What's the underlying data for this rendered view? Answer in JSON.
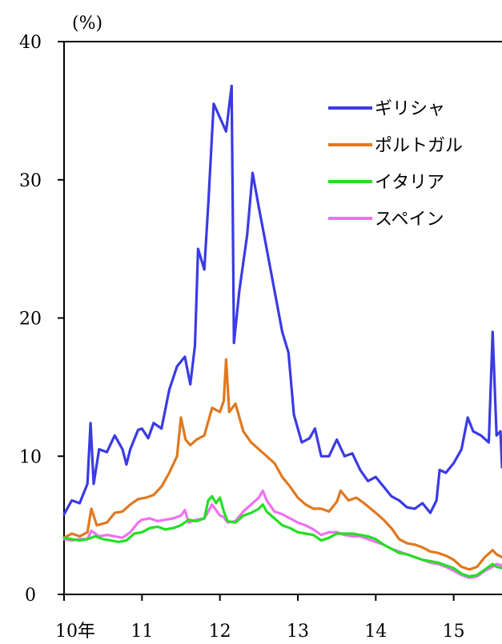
{
  "chart_data": {
    "type": "line",
    "ylabel": "(%)",
    "ylim": [
      0,
      40
    ],
    "xlim": [
      2010.0,
      2015.62
    ],
    "y_ticks": [
      {
        "value": 0,
        "label": "0"
      },
      {
        "value": 10,
        "label": "10"
      },
      {
        "value": 20,
        "label": "20"
      },
      {
        "value": 30,
        "label": "30"
      },
      {
        "value": 40,
        "label": "40"
      }
    ],
    "x_ticks": [
      {
        "value": 2010,
        "label": "10年"
      },
      {
        "value": 2011,
        "label": "11"
      },
      {
        "value": 2012,
        "label": "12"
      },
      {
        "value": 2013,
        "label": "13"
      },
      {
        "value": 2014,
        "label": "14"
      },
      {
        "value": 2015,
        "label": "15"
      }
    ],
    "grid": false,
    "legend_position": "top-right",
    "series": [
      {
        "name": "ギリシャ",
        "color": "#3a3ae6",
        "points": [
          [
            2010.0,
            5.8
          ],
          [
            2010.1,
            6.8
          ],
          [
            2010.2,
            6.6
          ],
          [
            2010.3,
            8.0
          ],
          [
            2010.34,
            12.4
          ],
          [
            2010.38,
            8.0
          ],
          [
            2010.45,
            10.5
          ],
          [
            2010.55,
            10.3
          ],
          [
            2010.65,
            11.5
          ],
          [
            2010.75,
            10.5
          ],
          [
            2010.8,
            9.4
          ],
          [
            2010.85,
            10.5
          ],
          [
            2010.95,
            11.9
          ],
          [
            2011.0,
            12.0
          ],
          [
            2011.08,
            11.3
          ],
          [
            2011.15,
            12.4
          ],
          [
            2011.25,
            12.0
          ],
          [
            2011.35,
            14.8
          ],
          [
            2011.45,
            16.5
          ],
          [
            2011.55,
            17.2
          ],
          [
            2011.62,
            15.2
          ],
          [
            2011.68,
            18.0
          ],
          [
            2011.72,
            25.0
          ],
          [
            2011.8,
            23.5
          ],
          [
            2011.85,
            28.2
          ],
          [
            2011.92,
            35.5
          ],
          [
            2012.0,
            34.5
          ],
          [
            2012.08,
            33.5
          ],
          [
            2012.15,
            36.8
          ],
          [
            2012.18,
            18.2
          ],
          [
            2012.25,
            22.0
          ],
          [
            2012.35,
            26.0
          ],
          [
            2012.42,
            30.5
          ],
          [
            2012.5,
            28.0
          ],
          [
            2012.6,
            25.0
          ],
          [
            2012.7,
            22.0
          ],
          [
            2012.8,
            19.0
          ],
          [
            2012.88,
            17.5
          ],
          [
            2012.95,
            13.0
          ],
          [
            2013.05,
            11.0
          ],
          [
            2013.15,
            11.3
          ],
          [
            2013.22,
            12.0
          ],
          [
            2013.3,
            10.0
          ],
          [
            2013.4,
            10.0
          ],
          [
            2013.5,
            11.2
          ],
          [
            2013.6,
            10.0
          ],
          [
            2013.7,
            10.2
          ],
          [
            2013.8,
            9.0
          ],
          [
            2013.9,
            8.2
          ],
          [
            2014.0,
            8.5
          ],
          [
            2014.1,
            7.8
          ],
          [
            2014.2,
            7.1
          ],
          [
            2014.3,
            6.8
          ],
          [
            2014.4,
            6.3
          ],
          [
            2014.5,
            6.2
          ],
          [
            2014.6,
            6.6
          ],
          [
            2014.7,
            5.9
          ],
          [
            2014.78,
            6.8
          ],
          [
            2014.82,
            9.0
          ],
          [
            2014.9,
            8.8
          ],
          [
            2015.0,
            9.5
          ],
          [
            2015.1,
            10.5
          ],
          [
            2015.18,
            12.8
          ],
          [
            2015.25,
            11.8
          ],
          [
            2015.35,
            11.5
          ],
          [
            2015.45,
            11.0
          ],
          [
            2015.5,
            19.0
          ],
          [
            2015.55,
            11.5
          ],
          [
            2015.6,
            11.8
          ],
          [
            2015.62,
            9.2
          ]
        ]
      },
      {
        "name": "ポルトガル",
        "color": "#e07820",
        "points": [
          [
            2010.0,
            4.1
          ],
          [
            2010.1,
            4.4
          ],
          [
            2010.2,
            4.2
          ],
          [
            2010.3,
            4.5
          ],
          [
            2010.35,
            6.2
          ],
          [
            2010.42,
            5.0
          ],
          [
            2010.55,
            5.2
          ],
          [
            2010.65,
            5.9
          ],
          [
            2010.75,
            6.0
          ],
          [
            2010.85,
            6.5
          ],
          [
            2010.95,
            6.9
          ],
          [
            2011.05,
            7.0
          ],
          [
            2011.15,
            7.2
          ],
          [
            2011.25,
            7.8
          ],
          [
            2011.35,
            8.8
          ],
          [
            2011.45,
            10.0
          ],
          [
            2011.5,
            12.8
          ],
          [
            2011.56,
            11.2
          ],
          [
            2011.62,
            10.8
          ],
          [
            2011.7,
            11.2
          ],
          [
            2011.8,
            11.5
          ],
          [
            2011.9,
            13.5
          ],
          [
            2012.0,
            13.2
          ],
          [
            2012.05,
            14.0
          ],
          [
            2012.08,
            17.0
          ],
          [
            2012.12,
            13.2
          ],
          [
            2012.2,
            13.8
          ],
          [
            2012.3,
            11.8
          ],
          [
            2012.4,
            11.0
          ],
          [
            2012.5,
            10.5
          ],
          [
            2012.6,
            10.0
          ],
          [
            2012.7,
            9.5
          ],
          [
            2012.8,
            8.5
          ],
          [
            2012.9,
            7.8
          ],
          [
            2013.0,
            7.0
          ],
          [
            2013.1,
            6.5
          ],
          [
            2013.2,
            6.2
          ],
          [
            2013.3,
            6.2
          ],
          [
            2013.4,
            6.0
          ],
          [
            2013.5,
            6.7
          ],
          [
            2013.55,
            7.5
          ],
          [
            2013.65,
            6.8
          ],
          [
            2013.75,
            7.0
          ],
          [
            2013.85,
            6.6
          ],
          [
            2014.0,
            5.9
          ],
          [
            2014.1,
            5.4
          ],
          [
            2014.2,
            4.8
          ],
          [
            2014.3,
            4.0
          ],
          [
            2014.4,
            3.7
          ],
          [
            2014.5,
            3.6
          ],
          [
            2014.6,
            3.4
          ],
          [
            2014.7,
            3.1
          ],
          [
            2014.8,
            3.0
          ],
          [
            2014.9,
            2.8
          ],
          [
            2015.0,
            2.5
          ],
          [
            2015.1,
            2.0
          ],
          [
            2015.2,
            1.8
          ],
          [
            2015.3,
            2.0
          ],
          [
            2015.4,
            2.7
          ],
          [
            2015.5,
            3.2
          ],
          [
            2015.55,
            2.9
          ],
          [
            2015.62,
            2.7
          ]
        ]
      },
      {
        "name": "イタリア",
        "color": "#22e022",
        "points": [
          [
            2010.0,
            4.1
          ],
          [
            2010.1,
            4.0
          ],
          [
            2010.2,
            3.9
          ],
          [
            2010.3,
            4.0
          ],
          [
            2010.4,
            4.2
          ],
          [
            2010.5,
            4.0
          ],
          [
            2010.6,
            3.9
          ],
          [
            2010.7,
            3.8
          ],
          [
            2010.8,
            3.9
          ],
          [
            2010.9,
            4.4
          ],
          [
            2011.0,
            4.5
          ],
          [
            2011.1,
            4.8
          ],
          [
            2011.2,
            4.9
          ],
          [
            2011.3,
            4.7
          ],
          [
            2011.4,
            4.8
          ],
          [
            2011.5,
            5.0
          ],
          [
            2011.6,
            5.4
          ],
          [
            2011.7,
            5.3
          ],
          [
            2011.8,
            5.5
          ],
          [
            2011.85,
            6.8
          ],
          [
            2011.9,
            7.1
          ],
          [
            2011.95,
            6.6
          ],
          [
            2012.0,
            7.0
          ],
          [
            2012.05,
            6.0
          ],
          [
            2012.1,
            5.3
          ],
          [
            2012.2,
            5.2
          ],
          [
            2012.3,
            5.7
          ],
          [
            2012.4,
            5.9
          ],
          [
            2012.5,
            6.2
          ],
          [
            2012.55,
            6.5
          ],
          [
            2012.6,
            6.0
          ],
          [
            2012.7,
            5.5
          ],
          [
            2012.8,
            5.0
          ],
          [
            2012.9,
            4.8
          ],
          [
            2013.0,
            4.5
          ],
          [
            2013.1,
            4.4
          ],
          [
            2013.2,
            4.3
          ],
          [
            2013.3,
            3.9
          ],
          [
            2013.4,
            4.1
          ],
          [
            2013.5,
            4.4
          ],
          [
            2013.6,
            4.4
          ],
          [
            2013.7,
            4.4
          ],
          [
            2013.8,
            4.3
          ],
          [
            2013.9,
            4.2
          ],
          [
            2014.0,
            4.0
          ],
          [
            2014.1,
            3.6
          ],
          [
            2014.2,
            3.3
          ],
          [
            2014.3,
            3.0
          ],
          [
            2014.4,
            2.9
          ],
          [
            2014.5,
            2.7
          ],
          [
            2014.6,
            2.5
          ],
          [
            2014.7,
            2.4
          ],
          [
            2014.8,
            2.3
          ],
          [
            2014.9,
            2.1
          ],
          [
            2015.0,
            1.9
          ],
          [
            2015.1,
            1.5
          ],
          [
            2015.2,
            1.3
          ],
          [
            2015.3,
            1.4
          ],
          [
            2015.4,
            1.8
          ],
          [
            2015.5,
            2.2
          ],
          [
            2015.55,
            2.0
          ],
          [
            2015.62,
            1.9
          ]
        ]
      },
      {
        "name": "スペイン",
        "color": "#f070f0",
        "points": [
          [
            2010.0,
            4.0
          ],
          [
            2010.1,
            3.9
          ],
          [
            2010.2,
            4.0
          ],
          [
            2010.3,
            4.0
          ],
          [
            2010.35,
            4.6
          ],
          [
            2010.45,
            4.2
          ],
          [
            2010.55,
            4.3
          ],
          [
            2010.65,
            4.2
          ],
          [
            2010.75,
            4.1
          ],
          [
            2010.85,
            4.5
          ],
          [
            2010.95,
            5.2
          ],
          [
            2011.0,
            5.4
          ],
          [
            2011.1,
            5.5
          ],
          [
            2011.2,
            5.3
          ],
          [
            2011.3,
            5.4
          ],
          [
            2011.4,
            5.5
          ],
          [
            2011.5,
            5.7
          ],
          [
            2011.55,
            6.1
          ],
          [
            2011.6,
            5.2
          ],
          [
            2011.7,
            5.4
          ],
          [
            2011.8,
            5.5
          ],
          [
            2011.9,
            6.5
          ],
          [
            2012.0,
            5.7
          ],
          [
            2012.05,
            5.6
          ],
          [
            2012.1,
            5.2
          ],
          [
            2012.2,
            5.3
          ],
          [
            2012.3,
            6.0
          ],
          [
            2012.4,
            6.5
          ],
          [
            2012.5,
            7.0
          ],
          [
            2012.55,
            7.5
          ],
          [
            2012.6,
            6.8
          ],
          [
            2012.7,
            6.0
          ],
          [
            2012.8,
            5.8
          ],
          [
            2012.9,
            5.5
          ],
          [
            2013.0,
            5.2
          ],
          [
            2013.1,
            5.0
          ],
          [
            2013.2,
            4.7
          ],
          [
            2013.3,
            4.3
          ],
          [
            2013.4,
            4.5
          ],
          [
            2013.5,
            4.5
          ],
          [
            2013.6,
            4.3
          ],
          [
            2013.7,
            4.2
          ],
          [
            2013.8,
            4.2
          ],
          [
            2013.9,
            4.0
          ],
          [
            2014.0,
            3.8
          ],
          [
            2014.1,
            3.6
          ],
          [
            2014.2,
            3.3
          ],
          [
            2014.3,
            3.1
          ],
          [
            2014.4,
            2.9
          ],
          [
            2014.5,
            2.7
          ],
          [
            2014.6,
            2.5
          ],
          [
            2014.7,
            2.3
          ],
          [
            2014.8,
            2.2
          ],
          [
            2014.9,
            2.0
          ],
          [
            2015.0,
            1.7
          ],
          [
            2015.1,
            1.4
          ],
          [
            2015.2,
            1.2
          ],
          [
            2015.3,
            1.3
          ],
          [
            2015.4,
            1.7
          ],
          [
            2015.5,
            2.0
          ],
          [
            2015.55,
            2.2
          ],
          [
            2015.62,
            2.1
          ]
        ]
      }
    ]
  }
}
